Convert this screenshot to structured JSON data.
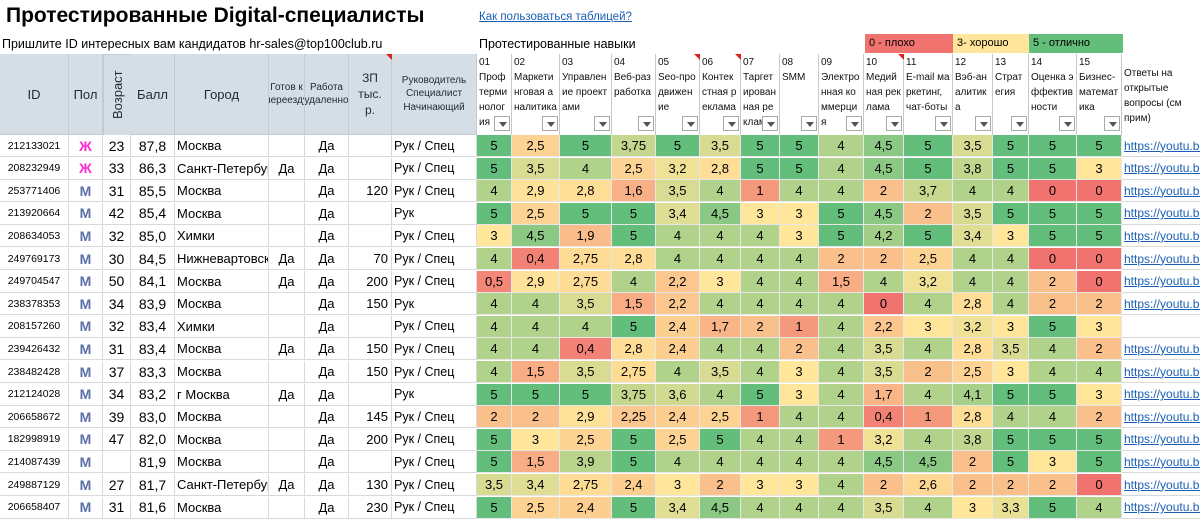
{
  "header": {
    "title": "Протестированные Digital-специалисты",
    "help_link": "Как пользоваться таблицей?",
    "subtitle": "Пришлите ID интересных вам кандидатов hr-sales@top100club.ru",
    "skills_title": "Протестированные навыки"
  },
  "legend": [
    {
      "label": "0 - плохо",
      "color": "#f0736f"
    },
    {
      "label": "3- хорошо",
      "color": "#ffe69a"
    },
    {
      "label": "5 - отлично",
      "color": "#63be7b"
    }
  ],
  "columns": {
    "id": "ID",
    "sex": "Пол",
    "age": "Возраст",
    "score": "Балл",
    "city": "Город",
    "relocate": "Готов к переезду",
    "remote": "Работа удаленно",
    "salary": "ЗП тыс. р.",
    "role": "Руководитель Специалист Начинающий",
    "answers": "Ответы на открытые вопросы (см прим)"
  },
  "skills": [
    {
      "num": "01",
      "name": "Профтерминология"
    },
    {
      "num": "02",
      "name": "Маркетинговая аналитика"
    },
    {
      "num": "03",
      "name": "Управление проектами"
    },
    {
      "num": "04",
      "name": "Веб-разработка"
    },
    {
      "num": "05",
      "name": "Seo-продвижение"
    },
    {
      "num": "06",
      "name": "Контекстная реклама"
    },
    {
      "num": "07",
      "name": "Таргетированная реклама"
    },
    {
      "num": "08",
      "name": "SMM"
    },
    {
      "num": "09",
      "name": "Электронная коммерция"
    },
    {
      "num": "10",
      "name": "Медийная реклама"
    },
    {
      "num": "11",
      "name": "E-mail маркетинг, чат-боты"
    },
    {
      "num": "12",
      "name": "Вэб-аналитика"
    },
    {
      "num": "13",
      "name": "Стратегия"
    },
    {
      "num": "14",
      "name": "Оценка эффективности"
    },
    {
      "num": "15",
      "name": "Бизнес-математика"
    }
  ],
  "rows": [
    {
      "id": "212133021",
      "sex": "Ж",
      "age": "23",
      "score": "87,8",
      "city": "Москва",
      "relocate": "",
      "remote": "Да",
      "salary": "",
      "role": "Рук / Спец",
      "skills": [
        "5",
        "2,5",
        "5",
        "3,75",
        "5",
        "3,5",
        "5",
        "5",
        "4",
        "4,5",
        "5",
        "3,5",
        "5",
        "5",
        "5"
      ],
      "link": "https://youtu.be/"
    },
    {
      "id": "208232949",
      "sex": "Ж",
      "age": "33",
      "score": "86,3",
      "city": "Санкт-Петербург",
      "relocate": "Да",
      "remote": "Да",
      "salary": "",
      "role": "Рук / Спец",
      "skills": [
        "5",
        "3,5",
        "4",
        "2,5",
        "3,2",
        "2,8",
        "5",
        "5",
        "4",
        "4,5",
        "5",
        "3,8",
        "5",
        "5",
        "3"
      ],
      "link": "https://youtu.be/"
    },
    {
      "id": "253771406",
      "sex": "М",
      "age": "31",
      "score": "85,5",
      "city": "Москва",
      "relocate": "",
      "remote": "Да",
      "salary": "120",
      "role": "Рук / Спец",
      "skills": [
        "4",
        "2,9",
        "2,8",
        "1,6",
        "3,5",
        "4",
        "1",
        "4",
        "4",
        "2",
        "3,7",
        "4",
        "4",
        "0",
        "0"
      ],
      "link": "https://youtu.be/"
    },
    {
      "id": "213920664",
      "sex": "М",
      "age": "42",
      "score": "85,4",
      "city": "Москва",
      "relocate": "",
      "remote": "Да",
      "salary": "",
      "role": "Рук",
      "skills": [
        "5",
        "2,5",
        "5",
        "5",
        "3,4",
        "4,5",
        "3",
        "3",
        "5",
        "4,5",
        "2",
        "3,5",
        "5",
        "5",
        "5"
      ],
      "link": "https://youtu.be/"
    },
    {
      "id": "208634053",
      "sex": "М",
      "age": "32",
      "score": "85,0",
      "city": "Химки",
      "relocate": "",
      "remote": "Да",
      "salary": "",
      "role": "Рук / Спец",
      "skills": [
        "3",
        "4,5",
        "1,9",
        "5",
        "4",
        "4",
        "4",
        "3",
        "5",
        "4,2",
        "5",
        "3,4",
        "3",
        "5",
        "5"
      ],
      "link": "https://youtu.be/"
    },
    {
      "id": "249769173",
      "sex": "М",
      "age": "30",
      "score": "84,5",
      "city": "Нижневартовск",
      "relocate": "Да",
      "remote": "Да",
      "salary": "70",
      "role": "Рук / Спец",
      "skills": [
        "4",
        "0,4",
        "2,75",
        "2,8",
        "4",
        "4",
        "4",
        "4",
        "2",
        "2",
        "2,5",
        "4",
        "4",
        "0",
        "0"
      ],
      "link": "https://youtu.be/"
    },
    {
      "id": "249704547",
      "sex": "М",
      "age": "50",
      "score": "84,1",
      "city": "Москва",
      "relocate": "Да",
      "remote": "Да",
      "salary": "200",
      "role": "Рук / Спец",
      "skills": [
        "0,5",
        "2,9",
        "2,75",
        "4",
        "2,2",
        "3",
        "4",
        "4",
        "1,5",
        "4",
        "3,2",
        "4",
        "4",
        "2",
        "0"
      ],
      "link": "https://youtu.be/"
    },
    {
      "id": "238378353",
      "sex": "М",
      "age": "34",
      "score": "83,9",
      "city": "Москва",
      "relocate": "",
      "remote": "Да",
      "salary": "150",
      "role": "Рук",
      "skills": [
        "4",
        "4",
        "3,5",
        "1,5",
        "2,2",
        "4",
        "4",
        "4",
        "4",
        "0",
        "4",
        "2,8",
        "4",
        "2",
        "2"
      ],
      "link": "https://youtu.be/"
    },
    {
      "id": "208157260",
      "sex": "М",
      "age": "32",
      "score": "83,4",
      "city": "Химки",
      "relocate": "",
      "remote": "Да",
      "salary": "",
      "role": "Рук / Спец",
      "skills": [
        "4",
        "4",
        "4",
        "5",
        "2,4",
        "1,7",
        "2",
        "1",
        "4",
        "2,2",
        "3",
        "3,2",
        "3",
        "5",
        "3"
      ],
      "link": ""
    },
    {
      "id": "239426432",
      "sex": "М",
      "age": "31",
      "score": "83,4",
      "city": "Москва",
      "relocate": "Да",
      "remote": "Да",
      "salary": "150",
      "role": "Рук / Спец",
      "skills": [
        "4",
        "4",
        "0,4",
        "2,8",
        "2,4",
        "4",
        "4",
        "2",
        "4",
        "3,5",
        "4",
        "2,8",
        "3,5",
        "4",
        "2"
      ],
      "link": "https://youtu.be/"
    },
    {
      "id": "238482428",
      "sex": "М",
      "age": "37",
      "score": "83,3",
      "city": "Москва",
      "relocate": "",
      "remote": "Да",
      "salary": "150",
      "role": "Рук / Спец",
      "skills": [
        "4",
        "1,5",
        "3,5",
        "2,75",
        "4",
        "3,5",
        "4",
        "3",
        "4",
        "3,5",
        "2",
        "2,5",
        "3",
        "4",
        "4"
      ],
      "link": "https://youtu.be/"
    },
    {
      "id": "212124028",
      "sex": "М",
      "age": "34",
      "score": "83,2",
      "city": "г Москва",
      "relocate": "Да",
      "remote": "Да",
      "salary": "",
      "role": "Рук",
      "skills": [
        "5",
        "5",
        "5",
        "3,75",
        "3,6",
        "4",
        "5",
        "3",
        "4",
        "1,7",
        "4",
        "4,1",
        "5",
        "5",
        "3"
      ],
      "link": "https://youtu.be/"
    },
    {
      "id": "206658672",
      "sex": "М",
      "age": "39",
      "score": "83,0",
      "city": "Москва",
      "relocate": "",
      "remote": "Да",
      "salary": "145",
      "role": "Рук / Спец",
      "skills": [
        "2",
        "2",
        "2,9",
        "2,25",
        "2,4",
        "2,5",
        "1",
        "4",
        "4",
        "0,4",
        "1",
        "2,8",
        "4",
        "4",
        "2"
      ],
      "link": "https://youtu.be/"
    },
    {
      "id": "182998919",
      "sex": "М",
      "age": "47",
      "score": "82,0",
      "city": "Москва",
      "relocate": "",
      "remote": "Да",
      "salary": "200",
      "role": "Рук / Спец",
      "skills": [
        "5",
        "3",
        "2,5",
        "5",
        "2,5",
        "5",
        "4",
        "4",
        "1",
        "3,2",
        "4",
        "3,8",
        "5",
        "5",
        "5"
      ],
      "link": "https://youtu.be/"
    },
    {
      "id": "214087439",
      "sex": "М",
      "age": "",
      "score": "81,9",
      "city": "Москва",
      "relocate": "",
      "remote": "Да",
      "salary": "",
      "role": "Рук / Спец",
      "skills": [
        "5",
        "1,5",
        "3,9",
        "5",
        "4",
        "4",
        "4",
        "4",
        "4",
        "4,5",
        "4,5",
        "2",
        "5",
        "3",
        "5"
      ],
      "link": "https://youtu.be/"
    },
    {
      "id": "249887129",
      "sex": "М",
      "age": "27",
      "score": "81,7",
      "city": "Санкт-Петербург",
      "relocate": "Да",
      "remote": "Да",
      "salary": "130",
      "role": "Рук / Спец",
      "skills": [
        "3,5",
        "3,4",
        "2,75",
        "2,4",
        "3",
        "2",
        "3",
        "3",
        "4",
        "2",
        "2,6",
        "2",
        "2",
        "2",
        "0"
      ],
      "link": "https://youtu.be/"
    },
    {
      "id": "206658407",
      "sex": "М",
      "age": "31",
      "score": "81,6",
      "city": "Москва",
      "relocate": "",
      "remote": "Да",
      "salary": "230",
      "role": "Рук / Спец",
      "skills": [
        "5",
        "2,5",
        "2,4",
        "5",
        "3,4",
        "4,5",
        "4",
        "4",
        "4",
        "3,5",
        "4",
        "3",
        "3,3",
        "5",
        "4"
      ],
      "link": "https://youtu.be/"
    }
  ]
}
